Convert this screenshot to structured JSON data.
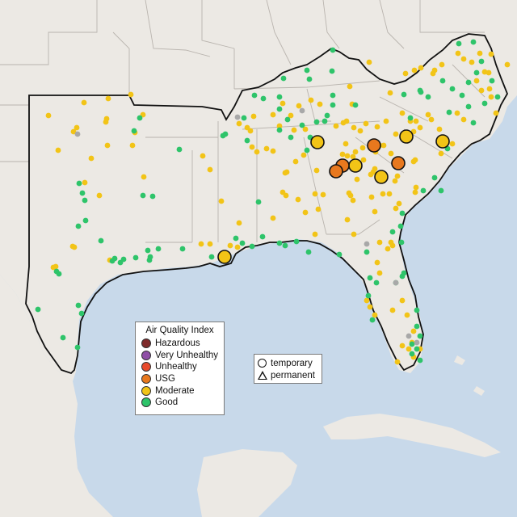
{
  "map": {
    "colors": {
      "land": "#ece9e4",
      "water": "#c8d9ea",
      "state_border": "#b9b4ae",
      "region_border": "#111111"
    },
    "aqi_legend": {
      "title": "Air Quality Index",
      "items": [
        {
          "label": "Hazardous",
          "color": "#7e2a2a"
        },
        {
          "label": "Very Unhealthy",
          "color": "#8f4fa6"
        },
        {
          "label": "Unhealthy",
          "color": "#e84a2c"
        },
        {
          "label": "USG",
          "color": "#e8781e"
        },
        {
          "label": "Moderate",
          "color": "#f2c417"
        },
        {
          "label": "Good",
          "color": "#2ec46a"
        }
      ]
    },
    "shape_legend": {
      "items": [
        {
          "label": "temporary",
          "icon": "circle-icon"
        },
        {
          "label": "permanent",
          "icon": "triangle-icon"
        }
      ]
    },
    "monitor_category_colors": {
      "good": "#2ec46a",
      "moderate": "#f2c417",
      "usg": "#e8781e",
      "nodata": "#a8a8a8"
    }
  }
}
